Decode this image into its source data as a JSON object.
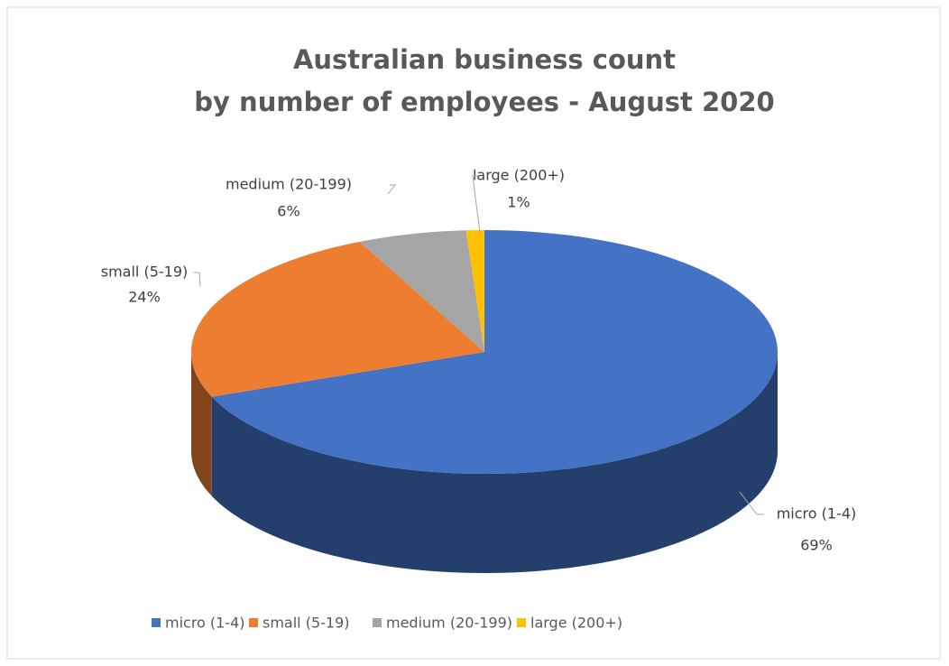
{
  "chart_data": {
    "type": "pie",
    "title": [
      "Australian business count",
      "by number of employees - August 2020"
    ],
    "categories": [
      "micro (1-4)",
      "small (5-19)",
      "medium (20-199)",
      "large (200+)"
    ],
    "values": [
      69,
      24,
      6,
      1
    ],
    "value_labels": [
      "69%",
      "24%",
      "6%",
      "1%"
    ],
    "colors": [
      "#4472c4",
      "#ed7d31",
      "#a5a5a5",
      "#ffc000"
    ],
    "legend": "bottom"
  }
}
